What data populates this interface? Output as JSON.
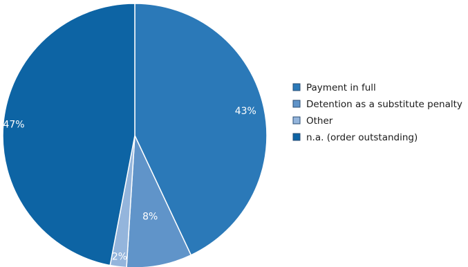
{
  "chart_data": {
    "type": "pie",
    "slices": [
      {
        "label": "Payment in full",
        "value": 43,
        "display": "43%",
        "color": "#2b79b8"
      },
      {
        "label": "Detention as a substitute penalty",
        "value": 8,
        "display": "8%",
        "color": "#6094c9"
      },
      {
        "label": "Other",
        "value": 2,
        "display": "2%",
        "color": "#94b5dc"
      },
      {
        "label": "n.a. (order outstanding)",
        "value": 47,
        "display": "47%",
        "color": "#0d64a4"
      }
    ],
    "start_angle_deg": 0,
    "direction": "clockwise",
    "legend_position": "right"
  }
}
